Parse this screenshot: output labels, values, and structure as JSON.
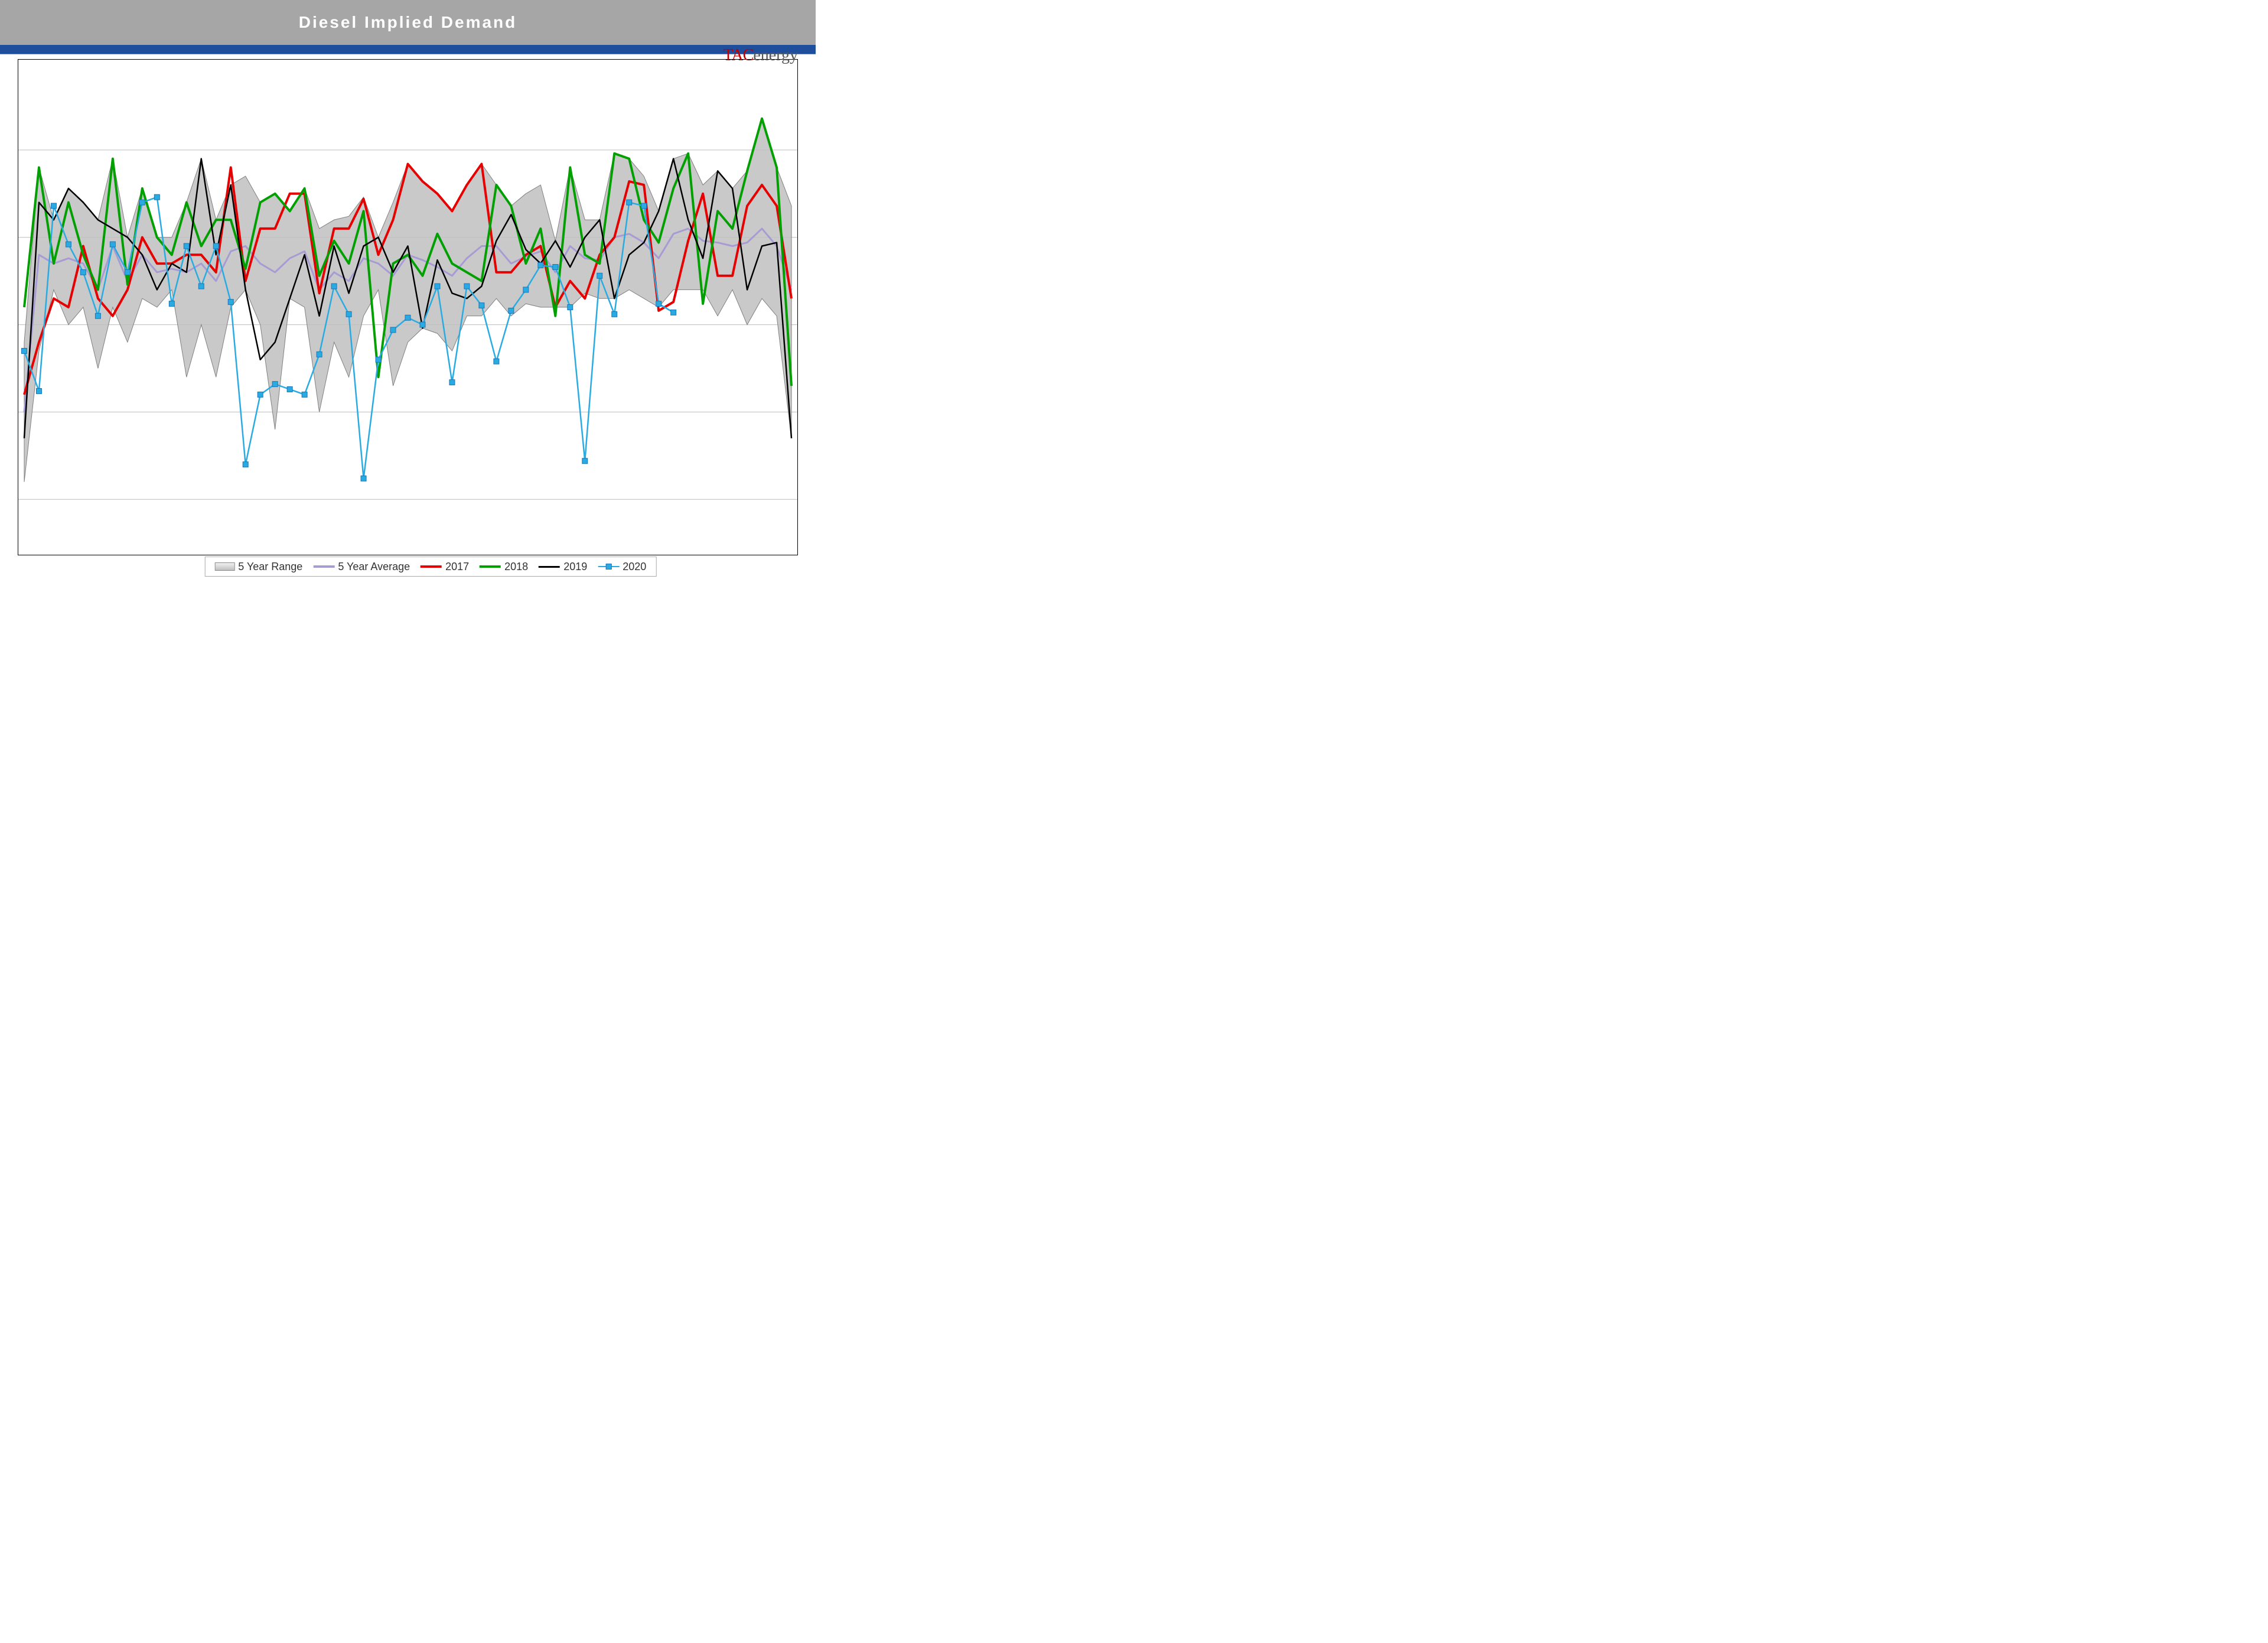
{
  "title": "Diesel Implied Demand",
  "logo": {
    "part1": "TAC",
    "part2": "energy"
  },
  "colors": {
    "title_bar": "#a6a6a6",
    "title_text": "#ffffff",
    "blue_bar": "#1f4e9c",
    "range_fill": "#bfbfbf",
    "range_stroke": "#808080",
    "avg": "#a89bd4",
    "y2017": "#e60000",
    "y2018": "#00a000",
    "y2019": "#000000",
    "y2020_line": "#29abe2",
    "y2020_marker": "#29abe2",
    "grid": "#bbbbbb",
    "border": "#000000",
    "background": "#ffffff"
  },
  "chart": {
    "type": "line",
    "x_count": 53,
    "ylim": [
      2200,
      5000
    ],
    "gridlines_y": [
      2500,
      3000,
      3500,
      4000,
      4500
    ],
    "range_high": [
      3400,
      4400,
      4100,
      4280,
      4200,
      4100,
      4450,
      4000,
      4280,
      4000,
      4000,
      4200,
      4450,
      4100,
      4300,
      4350,
      4200,
      4250,
      4150,
      4280,
      4050,
      4100,
      4120,
      4230,
      4000,
      4200,
      4420,
      4320,
      4250,
      4150,
      4300,
      4420,
      4300,
      4180,
      4250,
      4300,
      3980,
      4400,
      4100,
      4100,
      4480,
      4450,
      4350,
      4150,
      4450,
      4480,
      4300,
      4380,
      4280,
      4380,
      4680,
      4400,
      4180
    ],
    "range_low": [
      2600,
      3350,
      3700,
      3500,
      3600,
      3250,
      3600,
      3400,
      3650,
      3600,
      3700,
      3200,
      3500,
      3200,
      3600,
      3700,
      3500,
      2900,
      3650,
      3600,
      3000,
      3400,
      3200,
      3550,
      3700,
      3150,
      3400,
      3480,
      3450,
      3350,
      3550,
      3550,
      3650,
      3550,
      3620,
      3600,
      3600,
      3600,
      3680,
      3650,
      3650,
      3700,
      3650,
      3600,
      3700,
      3700,
      3700,
      3550,
      3700,
      3500,
      3650,
      3550,
      2850
    ],
    "avg": [
      3000,
      3900,
      3850,
      3880,
      3850,
      3700,
      3950,
      3750,
      3900,
      3800,
      3820,
      3800,
      3850,
      3750,
      3920,
      3950,
      3850,
      3800,
      3880,
      3920,
      3700,
      3800,
      3750,
      3880,
      3850,
      3780,
      3900,
      3870,
      3830,
      3780,
      3880,
      3950,
      3950,
      3850,
      3890,
      3920,
      3800,
      3950,
      3880,
      3870,
      4000,
      4020,
      3970,
      3880,
      4020,
      4050,
      3980,
      3970,
      3950,
      3970,
      4050,
      3950,
      3700
    ],
    "y2017": [
      3100,
      3400,
      3650,
      3600,
      3950,
      3650,
      3550,
      3700,
      4000,
      3850,
      3850,
      3900,
      3900,
      3800,
      4400,
      3750,
      4050,
      4050,
      4250,
      4250,
      3680,
      4050,
      4050,
      4220,
      3900,
      4100,
      4420,
      4320,
      4250,
      4150,
      4300,
      4420,
      3800,
      3800,
      3900,
      3950,
      3600,
      3750,
      3650,
      3900,
      4000,
      4320,
      4300,
      3580,
      3630,
      3980,
      4250,
      3780,
      3780,
      4180,
      4300,
      4180,
      3650
    ],
    "y2018": [
      3600,
      4400,
      3850,
      4200,
      3900,
      3700,
      4450,
      3730,
      4280,
      4000,
      3900,
      4200,
      3950,
      4100,
      4100,
      3820,
      4200,
      4250,
      4150,
      4280,
      3780,
      3980,
      3850,
      4150,
      3200,
      3850,
      3900,
      3780,
      4020,
      3850,
      3800,
      3750,
      4300,
      4180,
      3850,
      4050,
      3550,
      4400,
      3900,
      3850,
      4480,
      4450,
      4100,
      3970,
      4280,
      4480,
      3620,
      4150,
      4050,
      4380,
      4680,
      4400,
      3150
    ],
    "y2019": [
      2850,
      4200,
      4100,
      4280,
      4200,
      4100,
      4050,
      4000,
      3900,
      3700,
      3850,
      3800,
      4450,
      3900,
      4300,
      3700,
      3300,
      3400,
      3650,
      3900,
      3550,
      3950,
      3680,
      3950,
      4000,
      3800,
      3950,
      3480,
      3870,
      3680,
      3650,
      3720,
      3980,
      4130,
      3930,
      3850,
      3980,
      3830,
      4000,
      4100,
      3650,
      3900,
      3970,
      4150,
      4450,
      4100,
      3880,
      4380,
      4280,
      3700,
      3950,
      3970,
      2850
    ],
    "y2020": [
      3350,
      3120,
      4180,
      3960,
      3800,
      3550,
      3960,
      3800,
      4200,
      4230,
      3620,
      3950,
      3720,
      3950,
      3630,
      2700,
      3100,
      3160,
      3130,
      3100,
      3330,
      3720,
      3560,
      2620,
      3300,
      3470,
      3540,
      3500,
      3720,
      3170,
      3720,
      3610,
      3290,
      3580,
      3700,
      3840,
      3830,
      3600,
      2720,
      3780,
      3560,
      4200,
      4180,
      3620,
      3570
    ],
    "line_width_main": 4,
    "line_width_2020": 2.5,
    "marker_size": 9,
    "avg_width": 3
  },
  "legend": {
    "range": "5 Year Range",
    "avg": "5 Year Average",
    "y2017": "2017",
    "y2018": "2018",
    "y2019": "2019",
    "y2020": "2020"
  }
}
